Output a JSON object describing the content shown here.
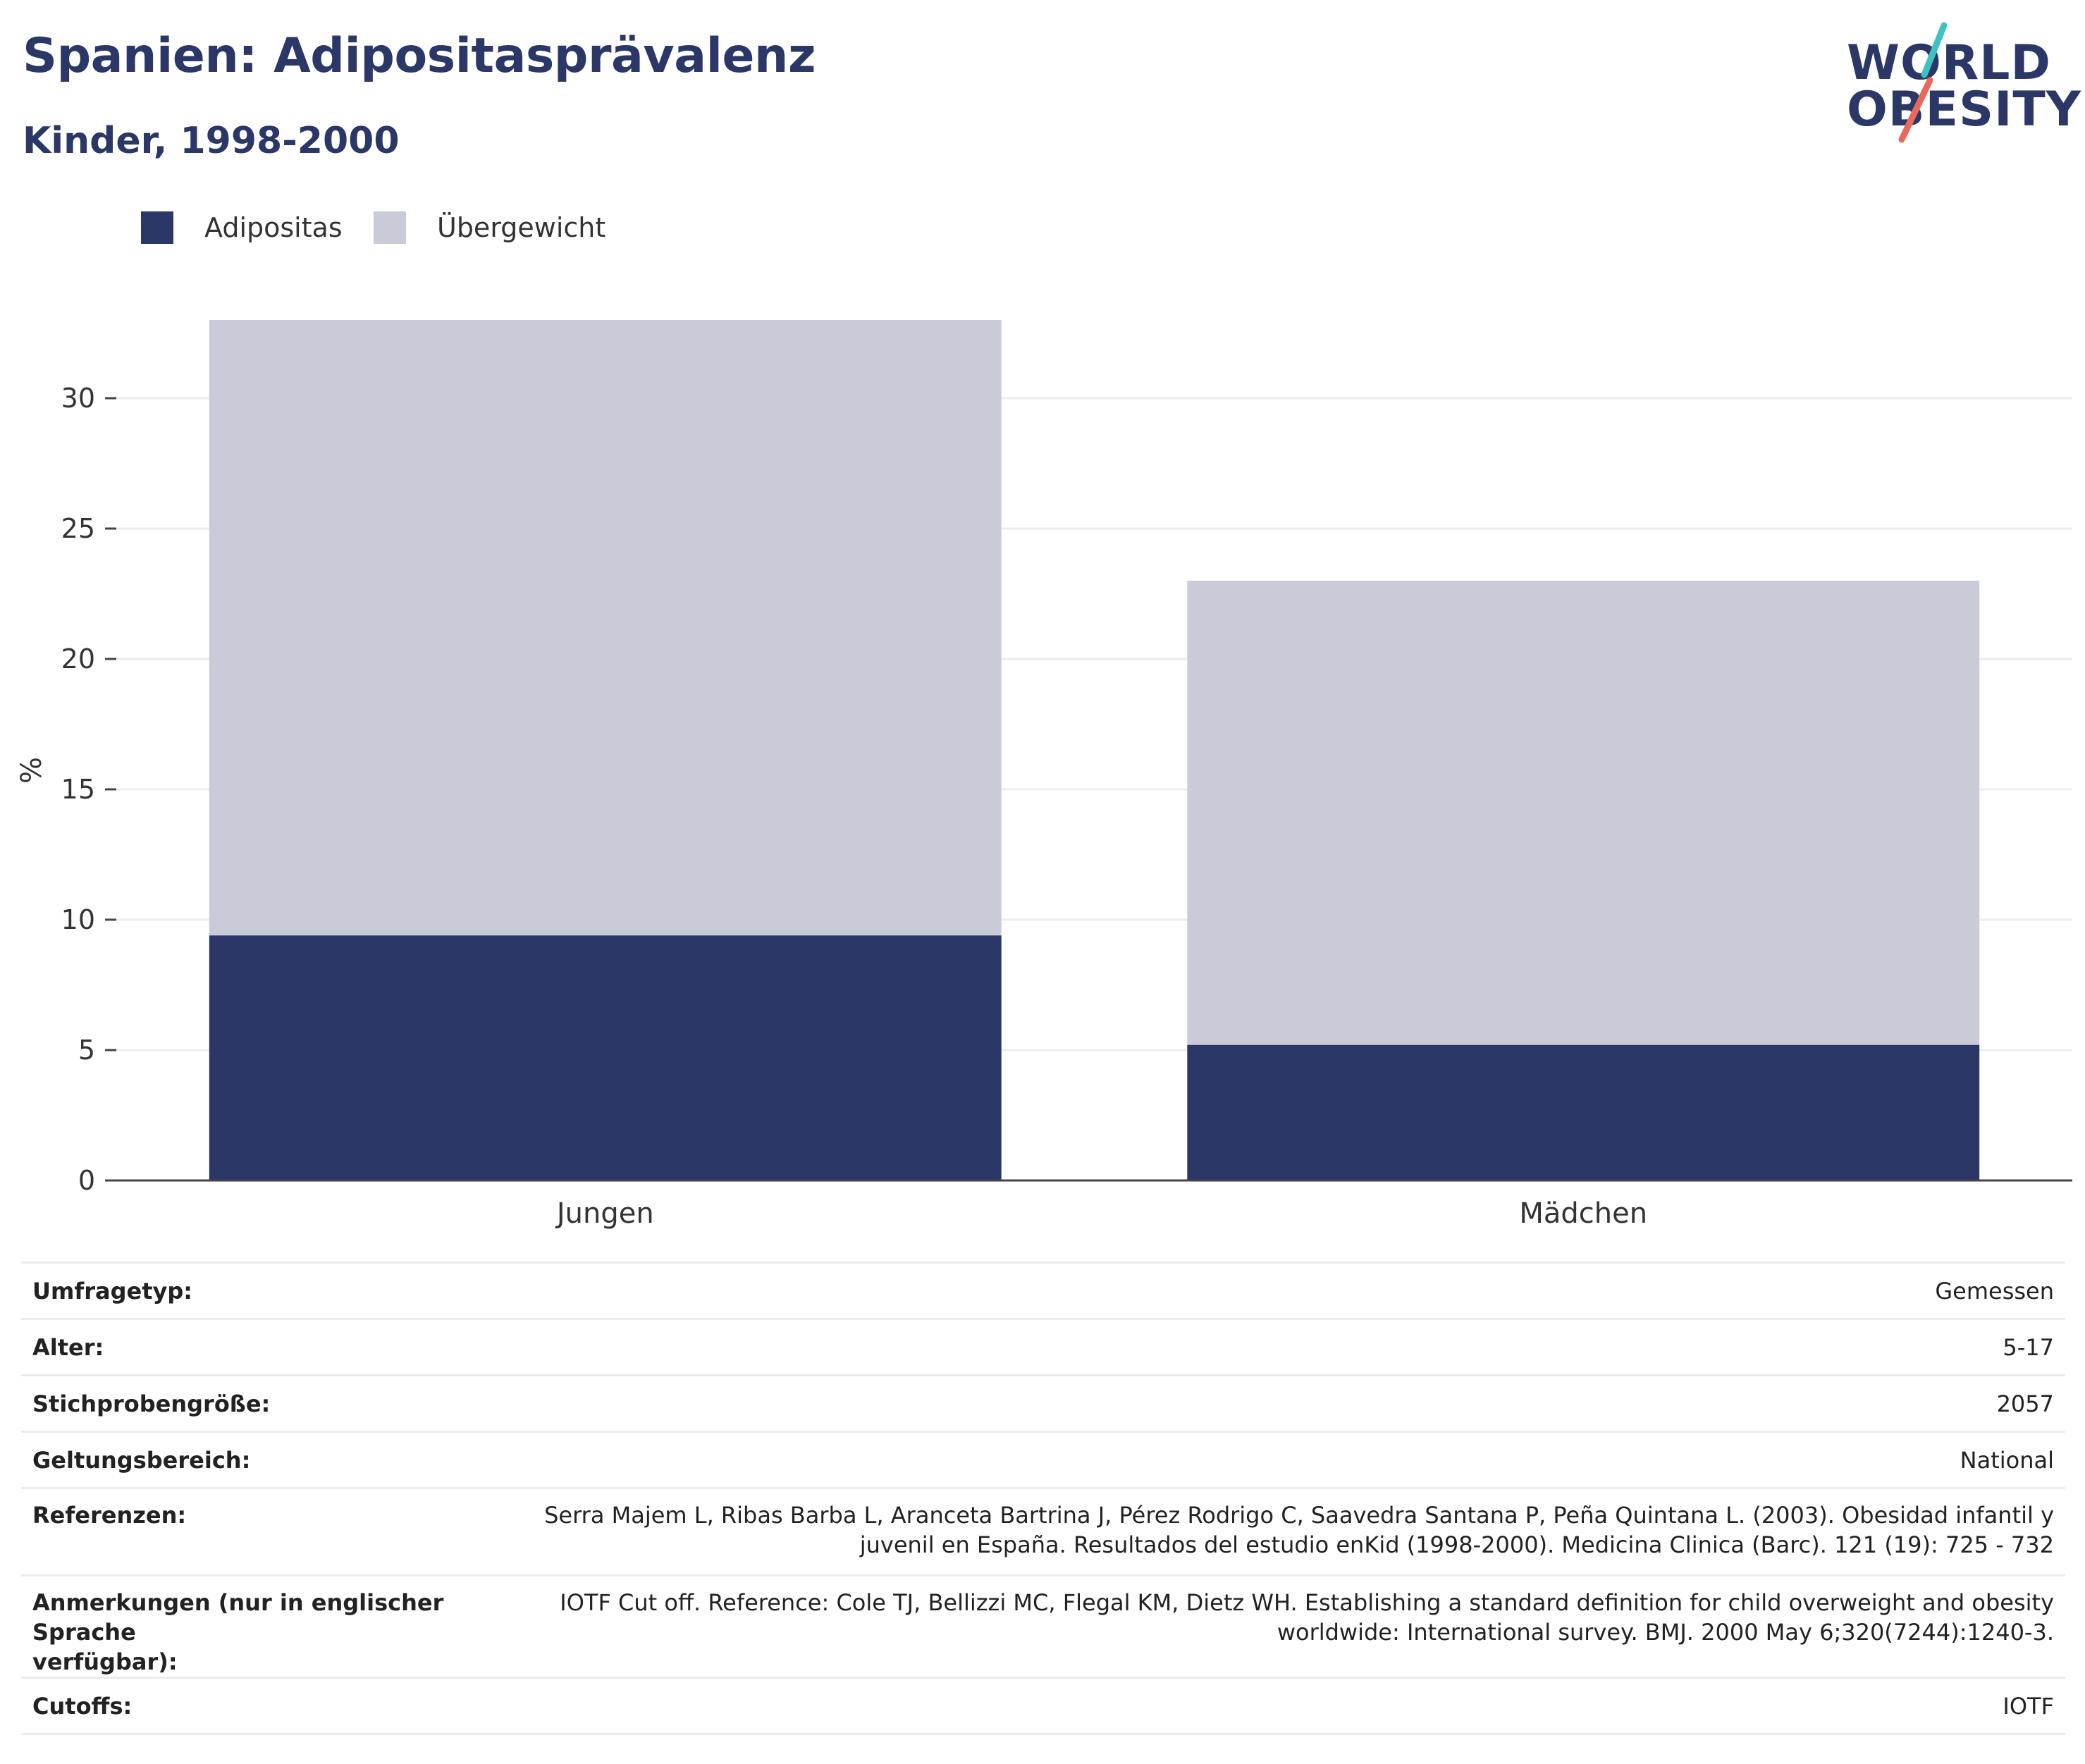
{
  "header": {
    "title": "Spanien: Adipositasprävalenz",
    "subtitle": "Kinder, 1998-2000"
  },
  "logo": {
    "line1": "WORLD",
    "line2": "OBESITY",
    "colors": {
      "slash_top": "#3ec1c1",
      "slash_bottom": "#e8685a"
    }
  },
  "colors": {
    "adipositas": "#2b3766",
    "uebergewicht": "#c9ccd8",
    "grid": "#ececf0",
    "axis": "#444444"
  },
  "chart_data": {
    "type": "bar",
    "stacked": true,
    "categories": [
      "Jungen",
      "Mädchen"
    ],
    "series": [
      {
        "name": "Adipositas",
        "values": [
          9.4,
          5.2
        ]
      },
      {
        "name": "Übergewicht",
        "values": [
          23.6,
          17.8
        ]
      }
    ],
    "ylabel": "%",
    "ylim": [
      0,
      35
    ],
    "yticks": [
      0,
      5,
      10,
      15,
      20,
      25,
      30
    ],
    "grid": true,
    "legend": "top-left"
  },
  "info": {
    "rows": [
      {
        "key": "Umfragetyp:",
        "value": "Gemessen"
      },
      {
        "key": "Alter:",
        "value": "5-17"
      },
      {
        "key": "Stichprobengröße:",
        "value": "2057"
      },
      {
        "key": "Geltungsbereich:",
        "value": "National"
      },
      {
        "key": "Referenzen:",
        "value_line1": "Serra Majem L, Ribas Barba L, Aranceta Bartrina J, Pérez Rodrigo C, Saavedra Santana P, Peña Quintana L. (2003). Obesidad infantil y",
        "value_line2": "juvenil en España. Resultados del estudio enKid (1998-2000). Medicina Clinica (Barc). 121 (19): 725 - 732"
      },
      {
        "key_line1": "Anmerkungen (nur in englischer Sprache",
        "key_line2": "verfügbar):",
        "value_line1": "IOTF Cut off. Reference: Cole TJ, Bellizzi MC, Flegal KM, Dietz WH. Establishing a standard definition for child overweight and obesity",
        "value_line2": "worldwide: International survey. BMJ. 2000 May 6;320(7244):1240-3."
      },
      {
        "key": "Cutoffs:",
        "value": "IOTF"
      }
    ]
  }
}
